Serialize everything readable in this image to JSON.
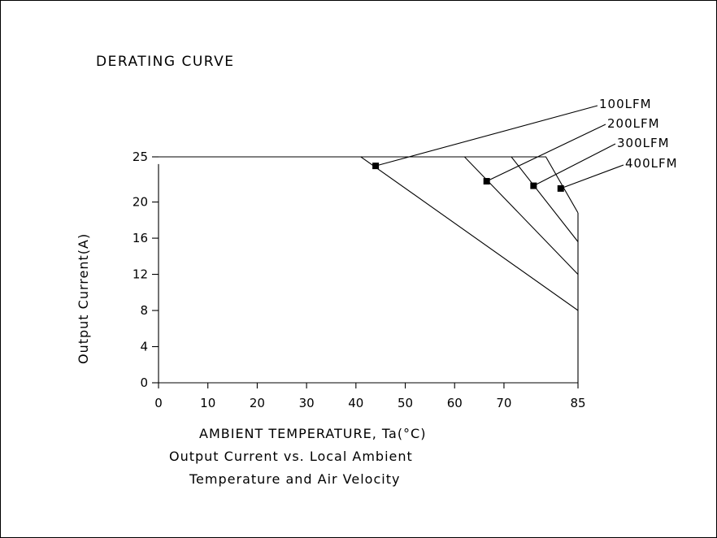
{
  "chart_data": {
    "type": "line",
    "title": "DERATING CURVE",
    "xlabel": "AMBIENT TEMPERATURE, Ta(°C)",
    "ylabel": "Output Current(A)",
    "caption_lines": [
      "Output Current vs. Local Ambient",
      "Temperature and Air Velocity"
    ],
    "xlim": [
      0,
      85
    ],
    "ylim": [
      0,
      25
    ],
    "x_ticks": [
      0,
      10,
      20,
      30,
      40,
      50,
      60,
      70,
      85
    ],
    "x_tick_labels": [
      "0",
      "10",
      "20",
      "30",
      "40",
      "50",
      "60",
      "70",
      "85"
    ],
    "y_ticks": [
      0,
      4,
      8,
      12,
      16,
      20,
      25
    ],
    "y_tick_labels": [
      "0",
      "4",
      "8",
      "12",
      "16",
      "20",
      "25"
    ],
    "grid": false,
    "series": [
      {
        "name": "100LFM",
        "x": [
          0,
          41,
          85
        ],
        "y": [
          25,
          25,
          8
        ],
        "marker": [
          44,
          24
        ]
      },
      {
        "name": "200LFM",
        "x": [
          0,
          62,
          85
        ],
        "y": [
          25,
          25,
          12
        ],
        "marker": [
          66.5,
          22.3
        ]
      },
      {
        "name": "300LFM",
        "x": [
          0,
          71.5,
          85
        ],
        "y": [
          25,
          25,
          15.6
        ],
        "marker": [
          76,
          21.8
        ]
      },
      {
        "name": "400LFM",
        "x": [
          0,
          78.5,
          85
        ],
        "y": [
          25,
          25,
          18.8
        ],
        "marker": [
          81.5,
          21.5
        ]
      }
    ]
  }
}
